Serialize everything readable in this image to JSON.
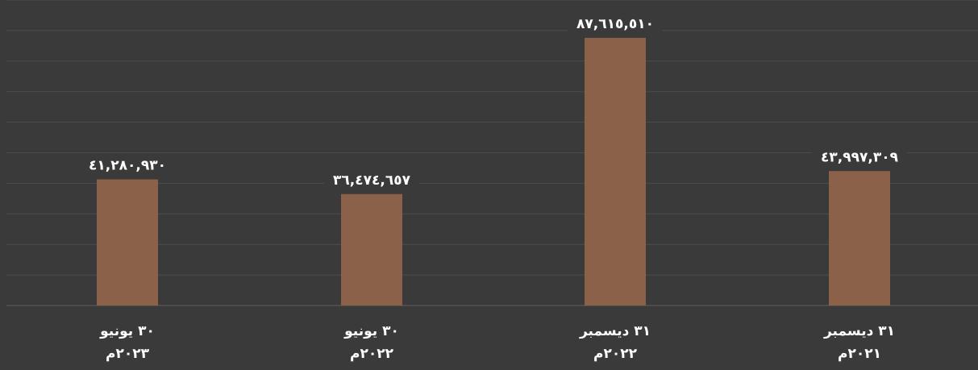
{
  "chart_data": {
    "type": "bar",
    "categories": [
      [
        "٣٠ يونيو",
        "٢٠٢٣م"
      ],
      [
        "٣٠ يونيو",
        "٢٠٢٢م"
      ],
      [
        "٣١ ديسمبر",
        "٢٠٢٢م"
      ],
      [
        "٣١ ديسمبر",
        "٢٠٢١م"
      ]
    ],
    "values": [
      41280930,
      36474657,
      87615510,
      43997309
    ],
    "value_labels": [
      "٤١,٢٨٠,٩٣٠",
      "٣٦,٤٧٤,٦٥٧",
      "٨٧,٦١٥,٥١٠",
      "٤٣,٩٩٧,٣٠٩"
    ],
    "ylim": [
      0,
      100000000
    ],
    "grid": true,
    "legend": "none",
    "colors": {
      "background": "#3a3a3a",
      "bar": "#8b614a",
      "gridline": "#4d4d4d",
      "text": "#ffffff"
    }
  }
}
